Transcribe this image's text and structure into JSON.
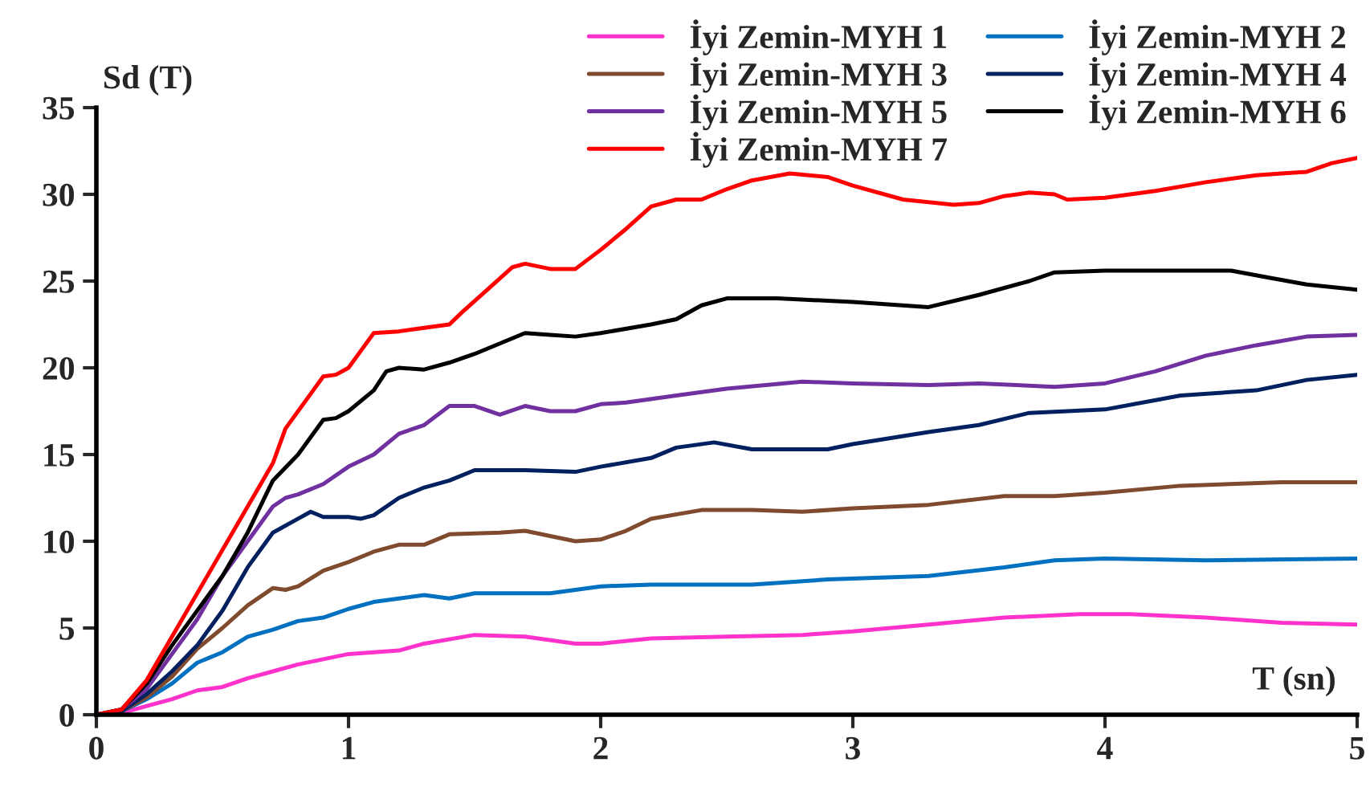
{
  "chart_data": {
    "type": "line",
    "xlabel": "T (sn)",
    "ylabel": "Sd (T)",
    "xlim": [
      0,
      5
    ],
    "ylim": [
      0,
      35
    ],
    "xticks": [
      0,
      1,
      2,
      3,
      4,
      5
    ],
    "yticks": [
      0,
      5,
      10,
      15,
      20,
      25,
      30,
      35
    ],
    "grid": false,
    "legend": "top right",
    "marker": "none",
    "line_style": "solid",
    "series": [
      {
        "name": "İyi Zemin-MYH 1",
        "color": "#ff33cc",
        "x": [
          0,
          0.1,
          0.2,
          0.3,
          0.4,
          0.5,
          0.6,
          0.7,
          0.8,
          0.9,
          1.0,
          1.2,
          1.3,
          1.5,
          1.7,
          1.9,
          2.0,
          2.2,
          2.5,
          2.8,
          3.0,
          3.3,
          3.6,
          3.9,
          4.1,
          4.4,
          4.7,
          5.0
        ],
        "values": [
          0,
          0.1,
          0.5,
          0.9,
          1.4,
          1.6,
          2.1,
          2.5,
          2.9,
          3.2,
          3.5,
          3.7,
          4.1,
          4.6,
          4.5,
          4.1,
          4.1,
          4.4,
          4.5,
          4.6,
          4.8,
          5.2,
          5.6,
          5.8,
          5.8,
          5.6,
          5.3,
          5.2
        ]
      },
      {
        "name": "İyi Zemin-MYH 2",
        "color": "#0070c0",
        "x": [
          0,
          0.1,
          0.2,
          0.3,
          0.4,
          0.5,
          0.6,
          0.7,
          0.8,
          0.9,
          1.0,
          1.1,
          1.2,
          1.3,
          1.4,
          1.5,
          1.8,
          2.0,
          2.2,
          2.6,
          2.9,
          3.3,
          3.6,
          3.8,
          4.0,
          4.4,
          5.0
        ],
        "values": [
          0,
          0.2,
          0.9,
          1.8,
          3,
          3.6,
          4.5,
          4.9,
          5.4,
          5.6,
          6.1,
          6.5,
          6.7,
          6.9,
          6.7,
          7.0,
          7.0,
          7.4,
          7.5,
          7.5,
          7.8,
          8.0,
          8.5,
          8.9,
          9.0,
          8.9,
          9.0
        ]
      },
      {
        "name": "İyi Zemin-MYH 3",
        "color": "#7f4a2e",
        "x": [
          0,
          0.1,
          0.2,
          0.3,
          0.4,
          0.5,
          0.6,
          0.7,
          0.75,
          0.8,
          0.9,
          1.0,
          1.1,
          1.2,
          1.3,
          1.4,
          1.6,
          1.7,
          1.9,
          2.0,
          2.1,
          2.2,
          2.4,
          2.6,
          2.8,
          3.0,
          3.3,
          3.6,
          3.8,
          4.0,
          4.3,
          4.7,
          5.0
        ],
        "values": [
          0,
          0.2,
          1,
          2.2,
          3.8,
          5,
          6.3,
          7.3,
          7.2,
          7.4,
          8.3,
          8.8,
          9.4,
          9.8,
          9.8,
          10.4,
          10.5,
          10.6,
          10.0,
          10.1,
          10.6,
          11.3,
          11.8,
          11.8,
          11.7,
          11.9,
          12.1,
          12.6,
          12.6,
          12.8,
          13.2,
          13.4,
          13.4
        ]
      },
      {
        "name": "İyi Zemin-MYH 4",
        "color": "#002060",
        "x": [
          0,
          0.1,
          0.2,
          0.3,
          0.4,
          0.5,
          0.6,
          0.7,
          0.8,
          0.85,
          0.9,
          1.0,
          1.05,
          1.1,
          1.2,
          1.3,
          1.4,
          1.5,
          1.7,
          1.9,
          2.0,
          2.2,
          2.3,
          2.45,
          2.6,
          2.9,
          3.0,
          3.3,
          3.5,
          3.7,
          4.0,
          4.3,
          4.6,
          4.8,
          5.0
        ],
        "values": [
          0,
          0.2,
          1.2,
          2.5,
          4,
          6,
          8.5,
          10.5,
          11.3,
          11.7,
          11.4,
          11.4,
          11.3,
          11.5,
          12.5,
          13.1,
          13.5,
          14.1,
          14.1,
          14.0,
          14.3,
          14.8,
          15.4,
          15.7,
          15.3,
          15.3,
          15.6,
          16.3,
          16.7,
          17.4,
          17.6,
          18.4,
          18.7,
          19.3,
          19.6
        ]
      },
      {
        "name": "İyi Zemin-MYH 5",
        "color": "#7030a0",
        "x": [
          0,
          0.1,
          0.2,
          0.3,
          0.4,
          0.5,
          0.6,
          0.7,
          0.75,
          0.8,
          0.9,
          1.0,
          1.1,
          1.2,
          1.3,
          1.4,
          1.5,
          1.6,
          1.7,
          1.8,
          1.9,
          2.0,
          2.1,
          2.3,
          2.5,
          2.8,
          3.0,
          3.3,
          3.5,
          3.8,
          4.0,
          4.2,
          4.4,
          4.6,
          4.8,
          5.0
        ],
        "values": [
          0,
          0.3,
          1.5,
          3.5,
          5.5,
          8,
          10,
          12,
          12.5,
          12.7,
          13.3,
          14.3,
          15,
          16.2,
          16.7,
          17.8,
          17.8,
          17.3,
          17.8,
          17.5,
          17.5,
          17.9,
          18.0,
          18.4,
          18.8,
          19.2,
          19.1,
          19.0,
          19.1,
          18.9,
          19.1,
          19.8,
          20.7,
          21.3,
          21.8,
          21.9
        ]
      },
      {
        "name": "İyi Zemin-MYH 6",
        "color": "#000000",
        "x": [
          0,
          0.1,
          0.2,
          0.3,
          0.4,
          0.5,
          0.6,
          0.7,
          0.8,
          0.9,
          0.95,
          1.0,
          1.1,
          1.15,
          1.2,
          1.3,
          1.4,
          1.5,
          1.6,
          1.7,
          1.8,
          1.9,
          2.0,
          2.2,
          2.3,
          2.4,
          2.5,
          2.7,
          3.0,
          3.3,
          3.5,
          3.7,
          3.8,
          4.0,
          4.2,
          4.5,
          4.65,
          4.8,
          5.0
        ],
        "values": [
          0,
          0.3,
          1.8,
          4,
          6,
          8,
          10.5,
          13.5,
          15,
          17,
          17.1,
          17.5,
          18.7,
          19.8,
          20,
          19.9,
          20.3,
          20.8,
          21.4,
          22,
          21.9,
          21.8,
          22,
          22.5,
          22.8,
          23.6,
          24,
          24,
          23.8,
          23.5,
          24.2,
          25,
          25.5,
          25.6,
          25.6,
          25.6,
          25.2,
          24.8,
          24.5
        ]
      },
      {
        "name": "İyi Zemin-MYH 7",
        "color": "#ff0000",
        "x": [
          0,
          0.1,
          0.2,
          0.3,
          0.4,
          0.5,
          0.6,
          0.7,
          0.75,
          0.85,
          0.9,
          0.95,
          1.0,
          1.05,
          1.1,
          1.2,
          1.3,
          1.4,
          1.45,
          1.55,
          1.65,
          1.7,
          1.8,
          1.9,
          2.0,
          2.1,
          2.2,
          2.3,
          2.4,
          2.5,
          2.6,
          2.75,
          2.9,
          3.0,
          3.2,
          3.4,
          3.5,
          3.6,
          3.7,
          3.8,
          3.85,
          4.0,
          4.2,
          4.4,
          4.6,
          4.7,
          4.8,
          4.9,
          5.0
        ],
        "values": [
          0,
          0.3,
          2,
          4.5,
          7,
          9.5,
          12,
          14.5,
          16.5,
          18.5,
          19.5,
          19.6,
          20,
          21,
          22,
          22.1,
          22.3,
          22.5,
          23.2,
          24.5,
          25.8,
          26,
          25.7,
          25.7,
          26.8,
          28,
          29.3,
          29.7,
          29.7,
          30.3,
          30.8,
          31.2,
          31,
          30.5,
          29.7,
          29.4,
          29.5,
          29.9,
          30.1,
          30,
          29.7,
          29.8,
          30.2,
          30.7,
          31.1,
          31.2,
          31.3,
          31.8,
          32.1
        ]
      }
    ]
  }
}
